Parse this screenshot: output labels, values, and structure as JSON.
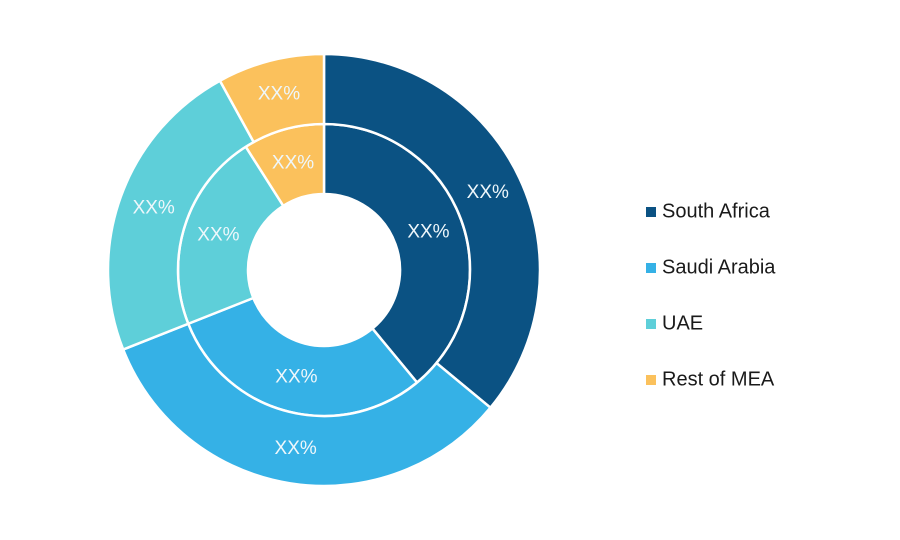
{
  "chart_data": {
    "type": "donut",
    "categories": [
      "South Africa",
      "Saudi Arabia",
      "UAE",
      "Rest of MEA"
    ],
    "colors": [
      "#0b5283",
      "#35b1e6",
      "#5ecfd9",
      "#fbc15c"
    ],
    "series": [
      {
        "values": [
          39,
          30,
          22,
          9
        ],
        "value_labels": [
          "XX%",
          "XX%",
          "XX%",
          "XX%"
        ]
      },
      {
        "values": [
          36,
          33,
          23,
          8
        ],
        "value_labels": [
          "XX%",
          "XX%",
          "XX%",
          "XX%"
        ]
      }
    ],
    "legend": "right"
  }
}
